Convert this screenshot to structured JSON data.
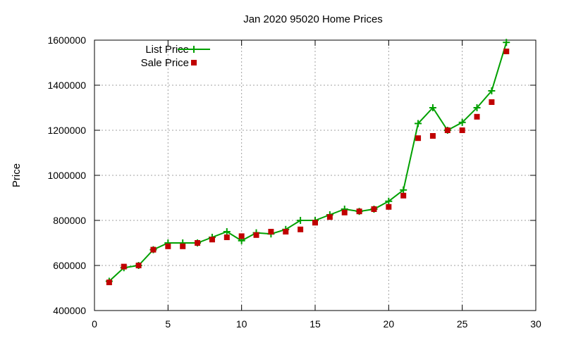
{
  "chart_data": {
    "type": "line",
    "title": "Jan 2020 95020 Home Prices",
    "xlabel": "",
    "ylabel": "Price",
    "xlim": [
      0,
      30
    ],
    "ylim": [
      400000,
      1600000
    ],
    "xticks": [
      0,
      5,
      10,
      15,
      20,
      25,
      30
    ],
    "yticks": [
      400000,
      600000,
      800000,
      1000000,
      1200000,
      1400000,
      1600000
    ],
    "xtick_labels": [
      "0",
      "5",
      "10",
      "15",
      "20",
      "25",
      "30"
    ],
    "ytick_labels": [
      "400000",
      "600000",
      "800000",
      "1000000",
      "1200000",
      "1400000",
      "1600000"
    ],
    "grid": true,
    "legend_position": "top-left",
    "x": [
      1,
      2,
      3,
      4,
      5,
      6,
      7,
      8,
      9,
      10,
      11,
      12,
      13,
      14,
      15,
      16,
      17,
      18,
      19,
      20,
      21,
      22,
      23,
      24,
      25,
      26,
      27,
      28
    ],
    "series": [
      {
        "name": "List Price",
        "style": "line-plus",
        "color": "#00a000",
        "values": [
          530000,
          590000,
          600000,
          670000,
          700000,
          700000,
          700000,
          725000,
          750000,
          710000,
          745000,
          740000,
          760000,
          800000,
          800000,
          825000,
          850000,
          840000,
          850000,
          885000,
          935000,
          1230000,
          1300000,
          1200000,
          1235000,
          1300000,
          1375000,
          1590000
        ]
      },
      {
        "name": "Sale Price",
        "style": "square",
        "color": "#c00000",
        "values": [
          525000,
          595000,
          600000,
          670000,
          685000,
          685000,
          700000,
          715000,
          725000,
          730000,
          735000,
          750000,
          750000,
          760000,
          790000,
          815000,
          835000,
          840000,
          850000,
          860000,
          910000,
          1165000,
          1175000,
          1200000,
          1200000,
          1260000,
          1325000,
          1550000
        ]
      }
    ]
  }
}
